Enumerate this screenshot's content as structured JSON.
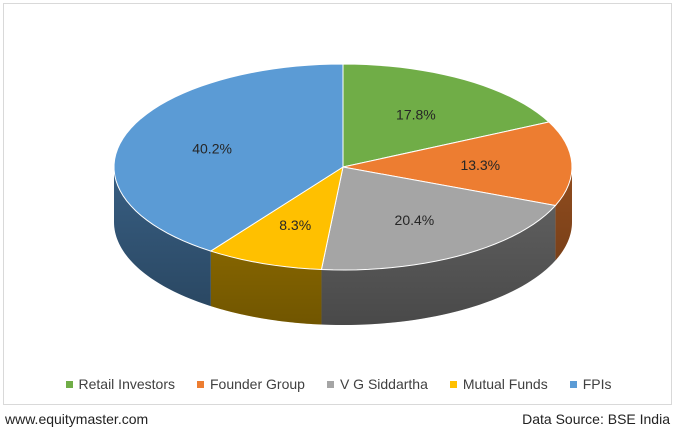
{
  "chart_data": {
    "type": "pie",
    "categories": [
      "Retail Investors",
      "Founder Group",
      "V G Siddartha",
      "Mutual Funds",
      "FPIs"
    ],
    "values": [
      17.8,
      13.3,
      20.4,
      8.3,
      40.2
    ],
    "labels": [
      "17.8%",
      "13.3%",
      "20.4%",
      "8.3%",
      "40.2%"
    ],
    "colors": [
      "#70ad47",
      "#ed7d31",
      "#a5a5a5",
      "#ffc000",
      "#5b9bd5"
    ],
    "style": "3d",
    "legend_position": "bottom"
  },
  "legend": {
    "items": [
      {
        "label": "Retail Investors",
        "color": "#70ad47"
      },
      {
        "label": "Founder Group",
        "color": "#ed7d31"
      },
      {
        "label": "V G Siddartha",
        "color": "#a5a5a5"
      },
      {
        "label": "Mutual Funds",
        "color": "#ffc000"
      },
      {
        "label": "FPIs",
        "color": "#5b9bd5"
      }
    ]
  },
  "footer": {
    "site": "www.equitymaster.com",
    "source": "Data Source: BSE India"
  }
}
